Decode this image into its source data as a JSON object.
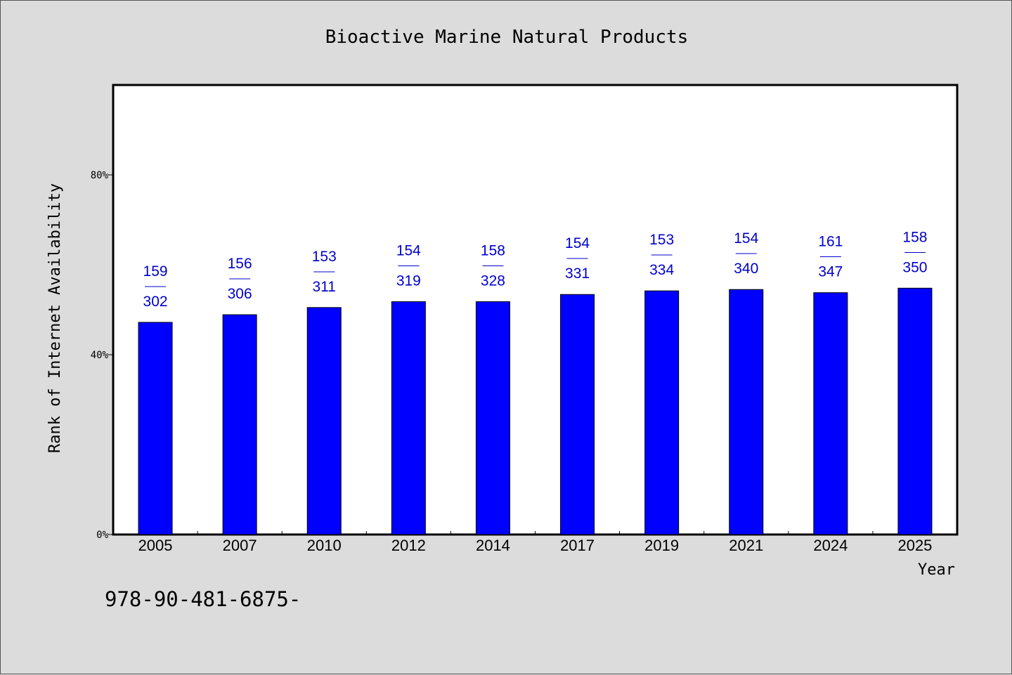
{
  "chart_data": {
    "type": "bar",
    "title": "Bioactive Marine Natural Products",
    "xlabel": "Year",
    "ylabel": "Rank of Internet Availability",
    "ylim": [
      0,
      100
    ],
    "yticks": [
      0,
      40,
      80
    ],
    "ytick_suffix": "%",
    "grid": false,
    "categories": [
      "2005",
      "2007",
      "2010",
      "2012",
      "2014",
      "2017",
      "2019",
      "2021",
      "2024",
      "2025"
    ],
    "values": [
      47.2,
      48.9,
      50.5,
      51.8,
      51.8,
      53.4,
      54.2,
      54.5,
      53.8,
      54.8
    ],
    "label_top": [
      "159",
      "156",
      "153",
      "154",
      "158",
      "154",
      "153",
      "154",
      "161",
      "158"
    ],
    "label_sep": "——",
    "label_bottom": [
      "302",
      "306",
      "311",
      "319",
      "328",
      "331",
      "334",
      "340",
      "347",
      "350"
    ],
    "colors": {
      "bar": "#0000ff",
      "label": "#0000cc",
      "background": "#dcdcdc",
      "plot": "#ffffff"
    }
  },
  "footer": {
    "isbn": "978-90-481-6875-"
  }
}
